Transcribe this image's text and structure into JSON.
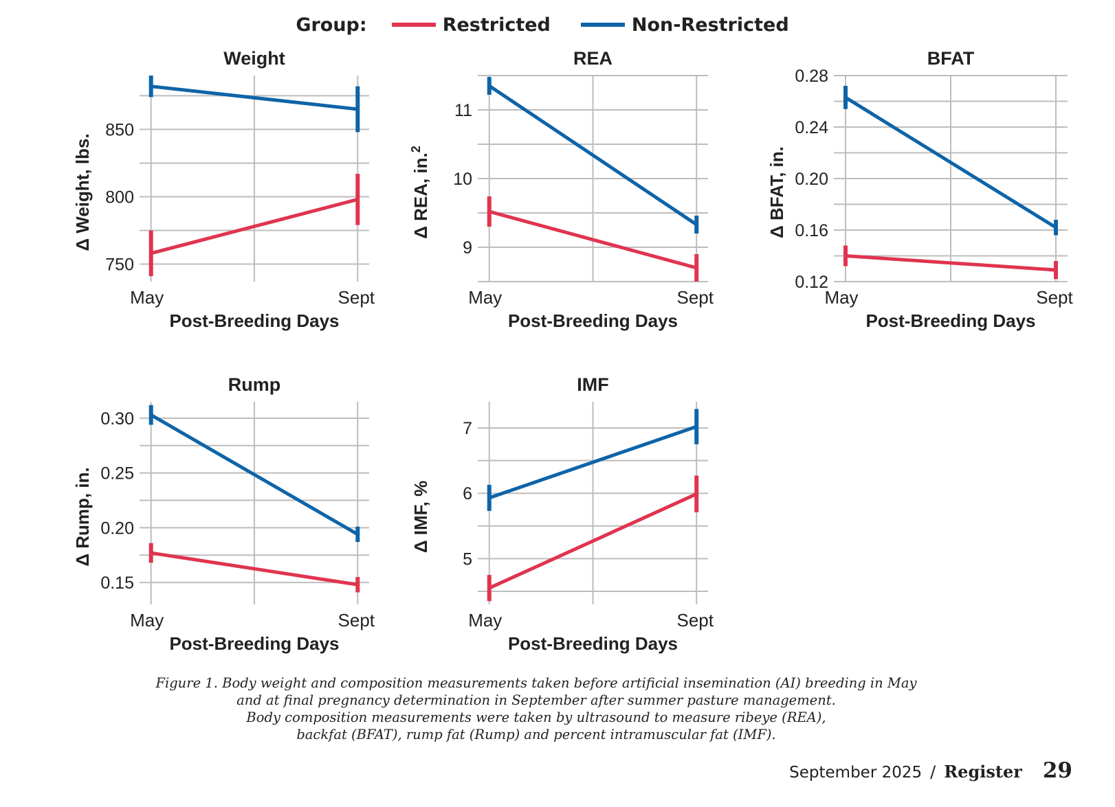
{
  "legend": {
    "title": "Group:",
    "items": [
      {
        "label": "Restricted",
        "color": "#e0344f"
      },
      {
        "label": "Non-Restricted",
        "color": "#0e64a8"
      }
    ]
  },
  "chart_data": [
    {
      "type": "line",
      "title": "Weight",
      "xlabel": "Post-Breeding Days",
      "ylabel": "Δ Weight, lbs.",
      "x": [
        "May",
        "Sept"
      ],
      "ylim": [
        737,
        890
      ],
      "yticks": [
        750,
        800,
        850
      ],
      "ytick_labels": [
        "750",
        "800",
        "850"
      ],
      "series": [
        {
          "name": "Restricted",
          "values": [
            758,
            798
          ],
          "error": [
            17,
            19
          ]
        },
        {
          "name": "Non-Restricted",
          "values": [
            882,
            865
          ],
          "error": [
            8,
            17
          ]
        }
      ]
    },
    {
      "type": "line",
      "title": "REA",
      "xlabel": "Post-Breeding Days",
      "ylabel": "Δ REA, in.",
      "ylabel_sup": "2",
      "x": [
        "May",
        "Sept"
      ],
      "ylim": [
        8.5,
        11.5
      ],
      "yticks": [
        9,
        10,
        11
      ],
      "ytick_labels": [
        "9",
        "10",
        "11"
      ],
      "series": [
        {
          "name": "Restricted",
          "values": [
            9.52,
            8.7
          ],
          "error": [
            0.22,
            0.2
          ]
        },
        {
          "name": "Non-Restricted",
          "values": [
            11.35,
            9.33
          ],
          "error": [
            0.13,
            0.13
          ]
        }
      ]
    },
    {
      "type": "line",
      "title": "BFAT",
      "xlabel": "Post-Breeding Days",
      "ylabel": "Δ BFAT, in.",
      "x": [
        "May",
        "Sept"
      ],
      "ylim": [
        0.12,
        0.28
      ],
      "yticks": [
        0.12,
        0.16,
        0.2,
        0.24,
        0.28
      ],
      "ytick_labels": [
        "0.12",
        "0.16",
        "0.20",
        "0.24",
        "0.28"
      ],
      "series": [
        {
          "name": "Restricted",
          "values": [
            0.14,
            0.129
          ],
          "error": [
            0.008,
            0.007
          ]
        },
        {
          "name": "Non-Restricted",
          "values": [
            0.263,
            0.162
          ],
          "error": [
            0.009,
            0.006
          ]
        }
      ]
    },
    {
      "type": "line",
      "title": "Rump",
      "xlabel": "Post-Breeding Days",
      "ylabel": "Δ Rump, in.",
      "x": [
        "May",
        "Sept"
      ],
      "ylim": [
        0.13,
        0.315
      ],
      "yticks": [
        0.15,
        0.2,
        0.25,
        0.3
      ],
      "ytick_labels": [
        "0.15",
        "0.20",
        "0.25",
        "0.30"
      ],
      "series": [
        {
          "name": "Restricted",
          "values": [
            0.177,
            0.148
          ],
          "error": [
            0.009,
            0.007
          ]
        },
        {
          "name": "Non-Restricted",
          "values": [
            0.303,
            0.194
          ],
          "error": [
            0.009,
            0.007
          ]
        }
      ]
    },
    {
      "type": "line",
      "title": "IMF",
      "xlabel": "Post-Breeding Days",
      "ylabel": "Δ IMF, %",
      "x": [
        "May",
        "Sept"
      ],
      "ylim": [
        4.3,
        7.4
      ],
      "yticks": [
        5,
        6,
        7
      ],
      "ytick_labels": [
        "5",
        "6",
        "7"
      ],
      "series": [
        {
          "name": "Restricted",
          "values": [
            4.55,
            5.99
          ],
          "error": [
            0.2,
            0.28
          ]
        },
        {
          "name": "Non-Restricted",
          "values": [
            5.93,
            7.02
          ],
          "error": [
            0.2,
            0.27
          ]
        }
      ]
    }
  ],
  "caption": {
    "figure_label": "Figure 1.",
    "lines": [
      "Body weight and composition measurements taken before artificial insemination (AI) breeding in May",
      "and at final pregnancy determination in September after summer pasture management.",
      "Body composition measurements were taken by ultrasound to measure ribeye (REA),",
      "backfat (BFAT), rump fat (Rump) and percent intramuscular fat (IMF)."
    ]
  },
  "footer": {
    "date": "September 2025",
    "separator": "/",
    "publication": "Register",
    "page_number": "29"
  }
}
